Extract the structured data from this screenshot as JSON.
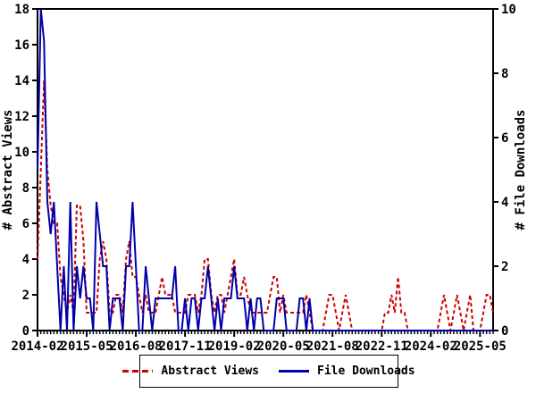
{
  "chart_data": {
    "type": "line",
    "title": "",
    "x_start": "2014-02",
    "x_end": "2025-09",
    "x_unit": "month",
    "x_tick_labels": [
      "2014-02",
      "2015-05",
      "2016-08",
      "2017-11",
      "2019-02",
      "2020-05",
      "2021-08",
      "2022-11",
      "2024-02",
      "2025-05"
    ],
    "x_major_tick_interval_months": 15,
    "x_minor_tick_interval_months": 1,
    "grid": false,
    "legend_position": "bottom",
    "left_axis": {
      "label": "# Abstract Views",
      "min": 0,
      "max": 18,
      "tick_step": 2
    },
    "right_axis": {
      "label": "# File Downloads",
      "min": 0,
      "max": 10,
      "tick_step": 2
    },
    "series": [
      {
        "name": "Abstract Views",
        "axis": "left",
        "color": "#cc0000",
        "style": "dashed",
        "values": [
          4,
          9,
          14,
          9,
          7,
          6,
          6,
          3,
          2,
          1,
          2,
          1,
          7,
          7,
          5,
          1,
          1,
          1,
          1,
          4,
          5,
          4,
          1,
          1,
          2,
          2,
          1,
          4,
          5,
          3,
          3,
          2,
          1,
          2,
          1,
          1,
          1,
          2,
          3,
          2,
          2,
          2,
          1,
          1,
          1,
          1,
          2,
          2,
          2,
          1,
          2,
          4,
          4,
          2,
          1,
          2,
          2,
          1,
          2,
          3,
          4,
          2,
          2,
          3,
          2,
          1,
          1,
          1,
          1,
          1,
          1,
          2,
          3,
          3,
          1,
          2,
          1,
          1,
          1,
          1,
          1,
          1,
          2,
          1,
          0,
          0,
          0,
          0,
          1,
          2,
          2,
          1,
          0,
          1,
          2,
          1,
          0,
          0,
          0,
          0,
          0,
          0,
          0,
          0,
          0,
          0,
          1,
          1,
          2,
          1,
          3,
          1,
          1,
          0,
          0,
          0,
          0,
          0,
          0,
          0,
          0,
          0,
          0,
          1,
          2,
          1,
          0,
          1,
          2,
          1,
          0,
          1,
          2,
          0,
          0,
          0,
          1,
          2,
          2,
          1
        ]
      },
      {
        "name": "File Downloads",
        "axis": "right",
        "color": "#0000aa",
        "style": "solid",
        "values": [
          5,
          10,
          9,
          4,
          3,
          4,
          2,
          0,
          2,
          0,
          4,
          0,
          2,
          1,
          2,
          1,
          1,
          0,
          4,
          3,
          2,
          2,
          0,
          1,
          1,
          1,
          0,
          2,
          2,
          4,
          2,
          0,
          0,
          2,
          1,
          0,
          1,
          1,
          1,
          1,
          1,
          1,
          2,
          0,
          0,
          1,
          0,
          1,
          1,
          0,
          1,
          1,
          2,
          1,
          0,
          1,
          0,
          1,
          1,
          1,
          2,
          1,
          1,
          1,
          0,
          1,
          0,
          1,
          1,
          0,
          0,
          0,
          0,
          1,
          1,
          1,
          0,
          0,
          0,
          0,
          1,
          1,
          0,
          1,
          0,
          0,
          0,
          0,
          0,
          0,
          0,
          0,
          0,
          0,
          0,
          0,
          0,
          0,
          0,
          0,
          0,
          0,
          0,
          0,
          0,
          0,
          0,
          0,
          0,
          0,
          0,
          0,
          0,
          0,
          0,
          0,
          0,
          0,
          0,
          0,
          0,
          0,
          0,
          0,
          0,
          0,
          0,
          0,
          0,
          0,
          0,
          0,
          0,
          0,
          0,
          0,
          0,
          0,
          0,
          0
        ]
      }
    ]
  },
  "legend": {
    "items": [
      {
        "label": "Abstract Views"
      },
      {
        "label": "File Downloads"
      }
    ]
  }
}
